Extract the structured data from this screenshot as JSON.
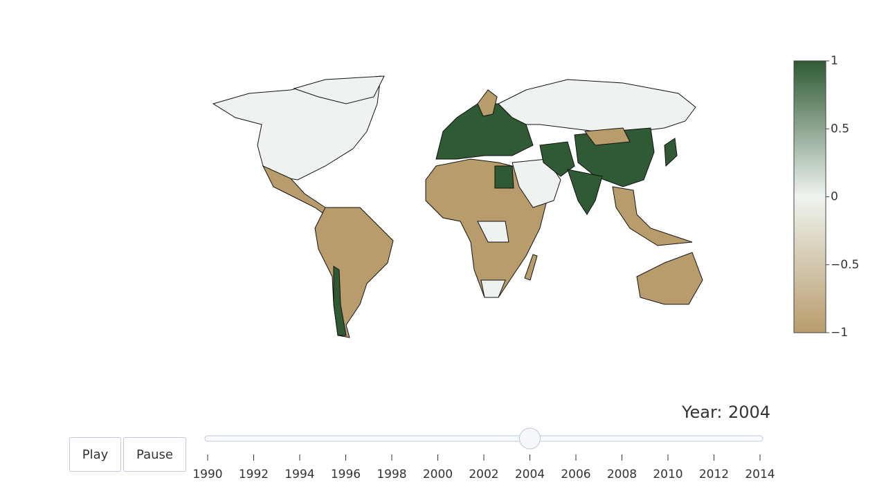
{
  "colorbar": {
    "range": [
      -1,
      1
    ],
    "colorscale": [
      [
        0,
        "#b89c6c"
      ],
      [
        0.5,
        "#eef3ef"
      ],
      [
        1,
        "#2f5a34"
      ]
    ],
    "ticks": [
      1,
      0.5,
      0,
      {
        "value": -0.5,
        "label": "−0.5"
      },
      {
        "value": -1,
        "label": "−1"
      }
    ]
  },
  "slider": {
    "prefix": "Year:",
    "current": "2004",
    "steps": [
      "1990",
      "1992",
      "1994",
      "1996",
      "1998",
      "2000",
      "2002",
      "2004",
      "2006",
      "2008",
      "2010",
      "2012",
      "2014"
    ]
  },
  "buttons": [
    "Play",
    "Pause"
  ]
}
